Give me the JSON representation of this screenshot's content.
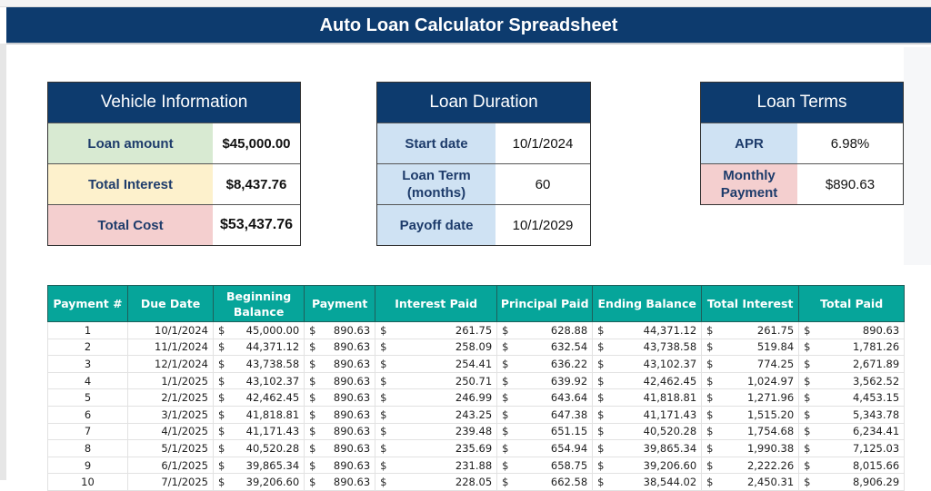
{
  "title": "Auto Loan Calculator Spreadsheet",
  "vehicle": {
    "header": "Vehicle Information",
    "rows": [
      {
        "label": "Loan amount",
        "value": "$45,000.00"
      },
      {
        "label": "Total Interest",
        "value": "$8,437.76"
      },
      {
        "label": "Total Cost",
        "value": "$53,437.76"
      }
    ]
  },
  "duration": {
    "header": "Loan Duration",
    "rows": [
      {
        "label": "Start date",
        "value": "10/1/2024"
      },
      {
        "label": "Loan Term (months)",
        "value": "60"
      },
      {
        "label": "Payoff date",
        "value": "10/1/2029"
      }
    ]
  },
  "terms": {
    "header": "Loan Terms",
    "rows": [
      {
        "label": "APR",
        "value": "6.98%"
      },
      {
        "label": "Monthly Payment",
        "value": "$890.63"
      }
    ]
  },
  "colors": {
    "title_bg": "#0d3b6e",
    "table_header": "#06a59a",
    "green": "#d8ead2",
    "yellow": "#fdf1cc",
    "pink": "#f4cfcf",
    "blue": "#cfe2f3"
  },
  "table": {
    "currency_symbol": "$",
    "headers": [
      "Payment #",
      "Due Date",
      "Beginning Balance",
      "Payment",
      "Interest Paid",
      "Principal Paid",
      "Ending Balance",
      "Total Interest",
      "Total Paid"
    ],
    "rows": [
      [
        "1",
        "10/1/2024",
        "45,000.00",
        "890.63",
        "261.75",
        "628.88",
        "44,371.12",
        "261.75",
        "890.63"
      ],
      [
        "2",
        "11/1/2024",
        "44,371.12",
        "890.63",
        "258.09",
        "632.54",
        "43,738.58",
        "519.84",
        "1,781.26"
      ],
      [
        "3",
        "12/1/2024",
        "43,738.58",
        "890.63",
        "254.41",
        "636.22",
        "43,102.37",
        "774.25",
        "2,671.89"
      ],
      [
        "4",
        "1/1/2025",
        "43,102.37",
        "890.63",
        "250.71",
        "639.92",
        "42,462.45",
        "1,024.97",
        "3,562.52"
      ],
      [
        "5",
        "2/1/2025",
        "42,462.45",
        "890.63",
        "246.99",
        "643.64",
        "41,818.81",
        "1,271.96",
        "4,453.15"
      ],
      [
        "6",
        "3/1/2025",
        "41,818.81",
        "890.63",
        "243.25",
        "647.38",
        "41,171.43",
        "1,515.20",
        "5,343.78"
      ],
      [
        "7",
        "4/1/2025",
        "41,171.43",
        "890.63",
        "239.48",
        "651.15",
        "40,520.28",
        "1,754.68",
        "6,234.41"
      ],
      [
        "8",
        "5/1/2025",
        "40,520.28",
        "890.63",
        "235.69",
        "654.94",
        "39,865.34",
        "1,990.38",
        "7,125.03"
      ],
      [
        "9",
        "6/1/2025",
        "39,865.34",
        "890.63",
        "231.88",
        "658.75",
        "39,206.60",
        "2,222.26",
        "8,015.66"
      ],
      [
        "10",
        "7/1/2025",
        "39,206.60",
        "890.63",
        "228.05",
        "662.58",
        "38,544.02",
        "2,450.31",
        "8,906.29"
      ]
    ]
  }
}
